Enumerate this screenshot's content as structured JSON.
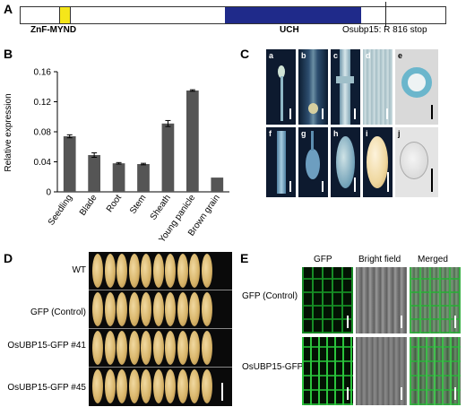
{
  "panelA": {
    "letter": "A",
    "domain1": "ZnF-MYND",
    "domain2": "UCH",
    "mutation": "Osubp15: R 816 stop",
    "colors": {
      "znf": "#f5e61a",
      "uch": "#1f2a8a"
    }
  },
  "panelB": {
    "letter": "B"
  },
  "chart_data": {
    "type": "bar",
    "categories": [
      "Seedling",
      "Blade",
      "Root",
      "Stem",
      "Sheath",
      "Young panicle",
      "Brown grain"
    ],
    "values": [
      0.074,
      0.049,
      0.038,
      0.037,
      0.091,
      0.135,
      0.019
    ],
    "errors": [
      0.002,
      0.003,
      0.001,
      0.001,
      0.004,
      0.001,
      0.0
    ],
    "ylabel": "Relative expression",
    "ylim": [
      0,
      0.16
    ],
    "yticks": [
      "0",
      "0.04",
      "0.08",
      "0.12",
      "0.16"
    ],
    "bar_color": "#555555",
    "grid": false
  },
  "panelC": {
    "letter": "C",
    "subs": [
      "a",
      "b",
      "c",
      "d",
      "e",
      "f",
      "g",
      "h",
      "i",
      "j"
    ]
  },
  "panelD": {
    "letter": "D",
    "rows": [
      "WT",
      "GFP (Control)",
      "OsUBP15-GFP #41",
      "OsUBP15-GFP #45"
    ]
  },
  "panelE": {
    "letter": "E",
    "cols": [
      "GFP",
      "Bright field",
      "Merged"
    ],
    "rows": [
      "GFP (Control)",
      "OsUBP15-GFP"
    ]
  }
}
